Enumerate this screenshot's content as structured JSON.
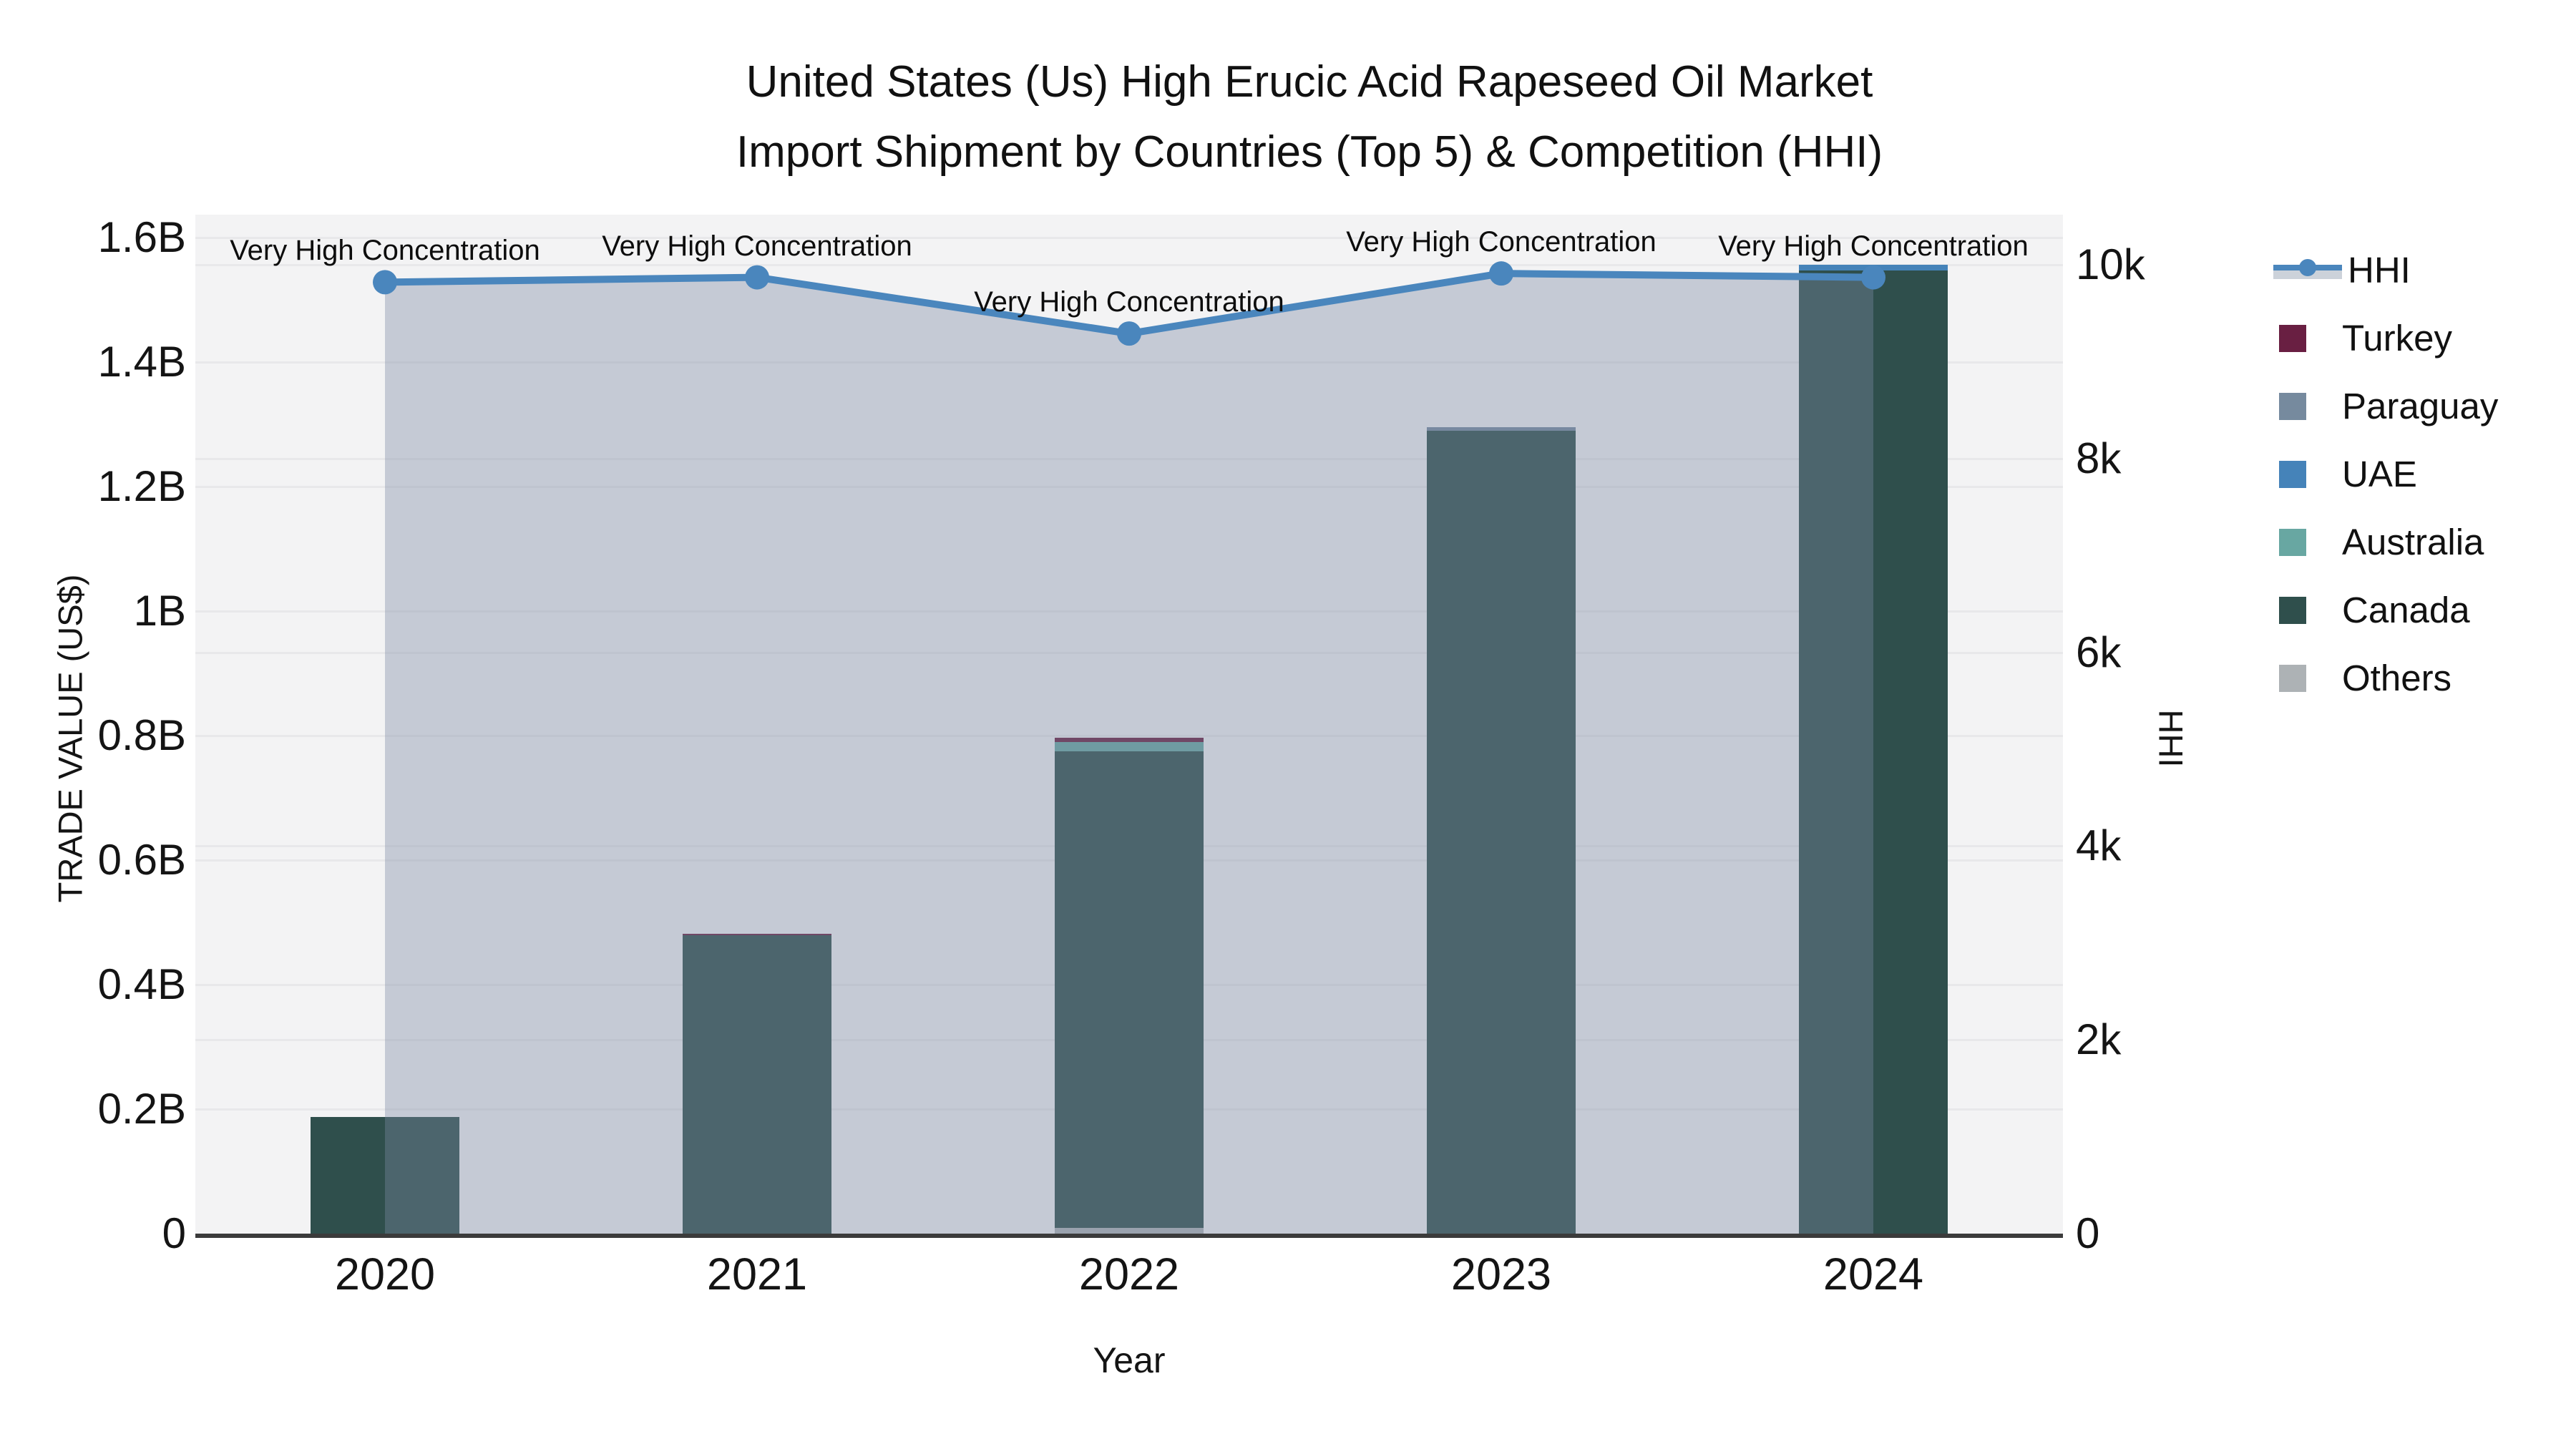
{
  "title": {
    "line1": "United States (Us) High Erucic Acid Rapeseed Oil Market",
    "line2": "Import Shipment by Countries (Top 5) & Competition (HHI)"
  },
  "axes": {
    "x": {
      "label": "Year",
      "ticks": [
        "2020",
        "2021",
        "2022",
        "2023",
        "2024"
      ]
    },
    "left": {
      "label": "TRADE VALUE (US$)",
      "ticks": [
        {
          "label": "0",
          "value": 0
        },
        {
          "label": "0.2B",
          "value": 0.2
        },
        {
          "label": "0.4B",
          "value": 0.4
        },
        {
          "label": "0.6B",
          "value": 0.6
        },
        {
          "label": "0.8B",
          "value": 0.8
        },
        {
          "label": "1B",
          "value": 1.0
        },
        {
          "label": "1.2B",
          "value": 1.2
        },
        {
          "label": "1.4B",
          "value": 1.4
        },
        {
          "label": "1.6B",
          "value": 1.6
        }
      ]
    },
    "right": {
      "label": "HHI",
      "ticks": [
        {
          "label": "0",
          "value": 0
        },
        {
          "label": "2k",
          "value": 2000
        },
        {
          "label": "4k",
          "value": 4000
        },
        {
          "label": "6k",
          "value": 6000
        },
        {
          "label": "8k",
          "value": 8000
        },
        {
          "label": "10k",
          "value": 10000
        }
      ]
    }
  },
  "legend": [
    {
      "label": "HHI",
      "type": "line",
      "color": "#4a86bd"
    },
    {
      "label": "Turkey",
      "type": "box",
      "color": "#691f42"
    },
    {
      "label": "Paraguay",
      "type": "box",
      "color": "#768a9e"
    },
    {
      "label": "UAE",
      "type": "box",
      "color": "#4583b9"
    },
    {
      "label": "Australia",
      "type": "box",
      "color": "#68a7a2"
    },
    {
      "label": "Canada",
      "type": "box",
      "color": "#2f4f4c"
    },
    {
      "label": "Others",
      "type": "box",
      "color": "#adb2b5"
    }
  ],
  "colors": {
    "hhi_line": "#4a86bd",
    "hhi_fill": "rgba(123,136,162,0.38)",
    "plot_bg": "#f3f3f4",
    "grid": "#e8e8ea",
    "axis_line": "#3b3b3b",
    "text": "#1a1a1a"
  },
  "chart_data": {
    "type": "bar",
    "subtype": "stacked-bars-with-line-overlay",
    "categories": [
      "2020",
      "2021",
      "2022",
      "2023",
      "2024"
    ],
    "bar_value_unit": "billion US$ (left axis, TRADE VALUE (US$))",
    "stack_order_bottom_to_top": [
      "Others",
      "Canada",
      "Australia",
      "UAE",
      "Paraguay",
      "Turkey"
    ],
    "series": [
      {
        "name": "Turkey",
        "values": [
          0,
          0.002,
          0.007,
          0,
          0
        ]
      },
      {
        "name": "Paraguay",
        "values": [
          0,
          0,
          0,
          0.005,
          0
        ]
      },
      {
        "name": "UAE",
        "values": [
          0,
          0,
          0,
          0,
          0.009
        ]
      },
      {
        "name": "Australia",
        "values": [
          0,
          0,
          0.015,
          0,
          0
        ]
      },
      {
        "name": "Canada",
        "values": [
          0.187,
          0.48,
          0.766,
          1.29,
          1.547
        ]
      },
      {
        "name": "Others",
        "values": [
          0,
          0,
          0.009,
          0,
          0
        ]
      }
    ],
    "bar_totals": [
      0.187,
      0.482,
      0.797,
      1.295,
      1.556
    ],
    "line_series": {
      "name": "HHI",
      "axis": "right",
      "values": [
        9820,
        9870,
        9290,
        9910,
        9870
      ],
      "has_area_fill": true
    },
    "annotations": [
      "Very High Concentration",
      "Very High Concentration",
      "Very High Concentration",
      "Very High Concentration",
      "Very High Concentration"
    ],
    "title": "United States (Us) High Erucic Acid Rapeseed Oil Market Import Shipment by Countries (Top 5) & Competition (HHI)",
    "xlabel": "Year",
    "ylabel_left": "TRADE VALUE (US$)",
    "ylabel_right": "HHI",
    "ylim_left": [
      0,
      1.6
    ],
    "ylim_right": [
      0,
      10000
    ],
    "grid": true,
    "legend_position": "right"
  }
}
